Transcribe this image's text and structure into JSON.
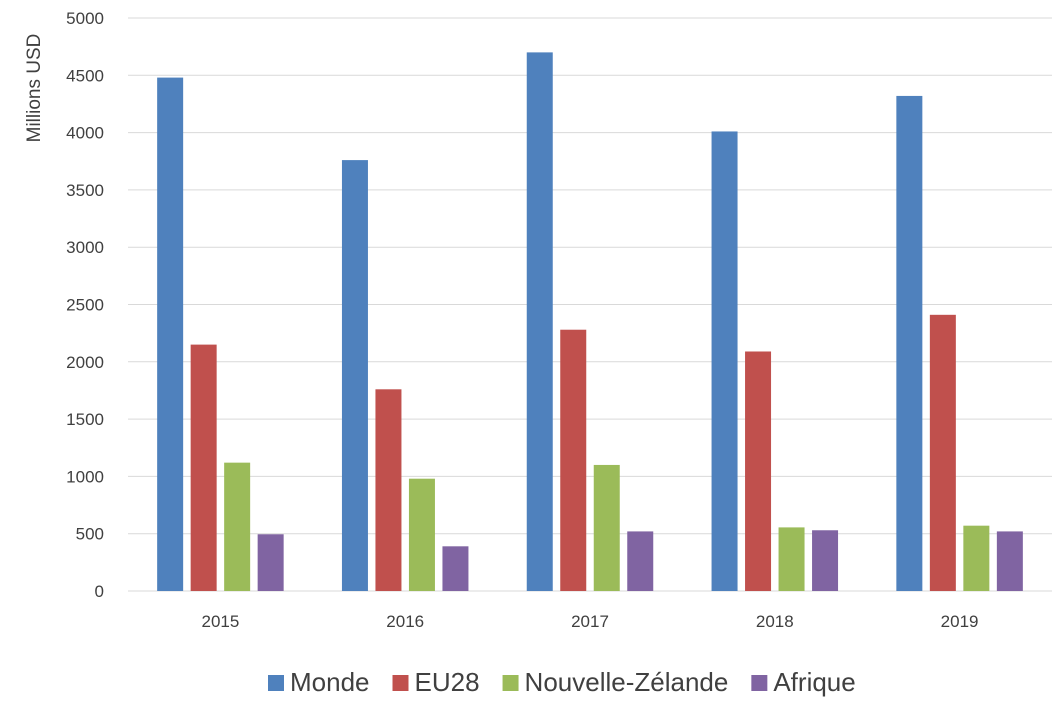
{
  "chart_data": {
    "type": "bar",
    "title": "",
    "xlabel": "",
    "ylabel": "Millions USD",
    "ylim": [
      0,
      5000
    ],
    "yticks": [
      0,
      500,
      1000,
      1500,
      2000,
      2500,
      3000,
      3500,
      4000,
      4500,
      5000
    ],
    "grid": true,
    "legend_position": "bottom",
    "categories": [
      "2015",
      "2016",
      "2017",
      "2018",
      "2019"
    ],
    "series": [
      {
        "name": "Monde",
        "color": "#4f81bd",
        "values": [
          4480,
          3760,
          4700,
          4010,
          4320
        ]
      },
      {
        "name": "EU28",
        "color": "#c0504d",
        "values": [
          2150,
          1760,
          2280,
          2090,
          2410
        ]
      },
      {
        "name": "Nouvelle-Zélande",
        "color": "#9bbb59",
        "values": [
          1120,
          980,
          1100,
          555,
          570
        ]
      },
      {
        "name": "Afrique",
        "color": "#8064a2",
        "values": [
          495,
          390,
          520,
          530,
          520
        ]
      }
    ]
  }
}
